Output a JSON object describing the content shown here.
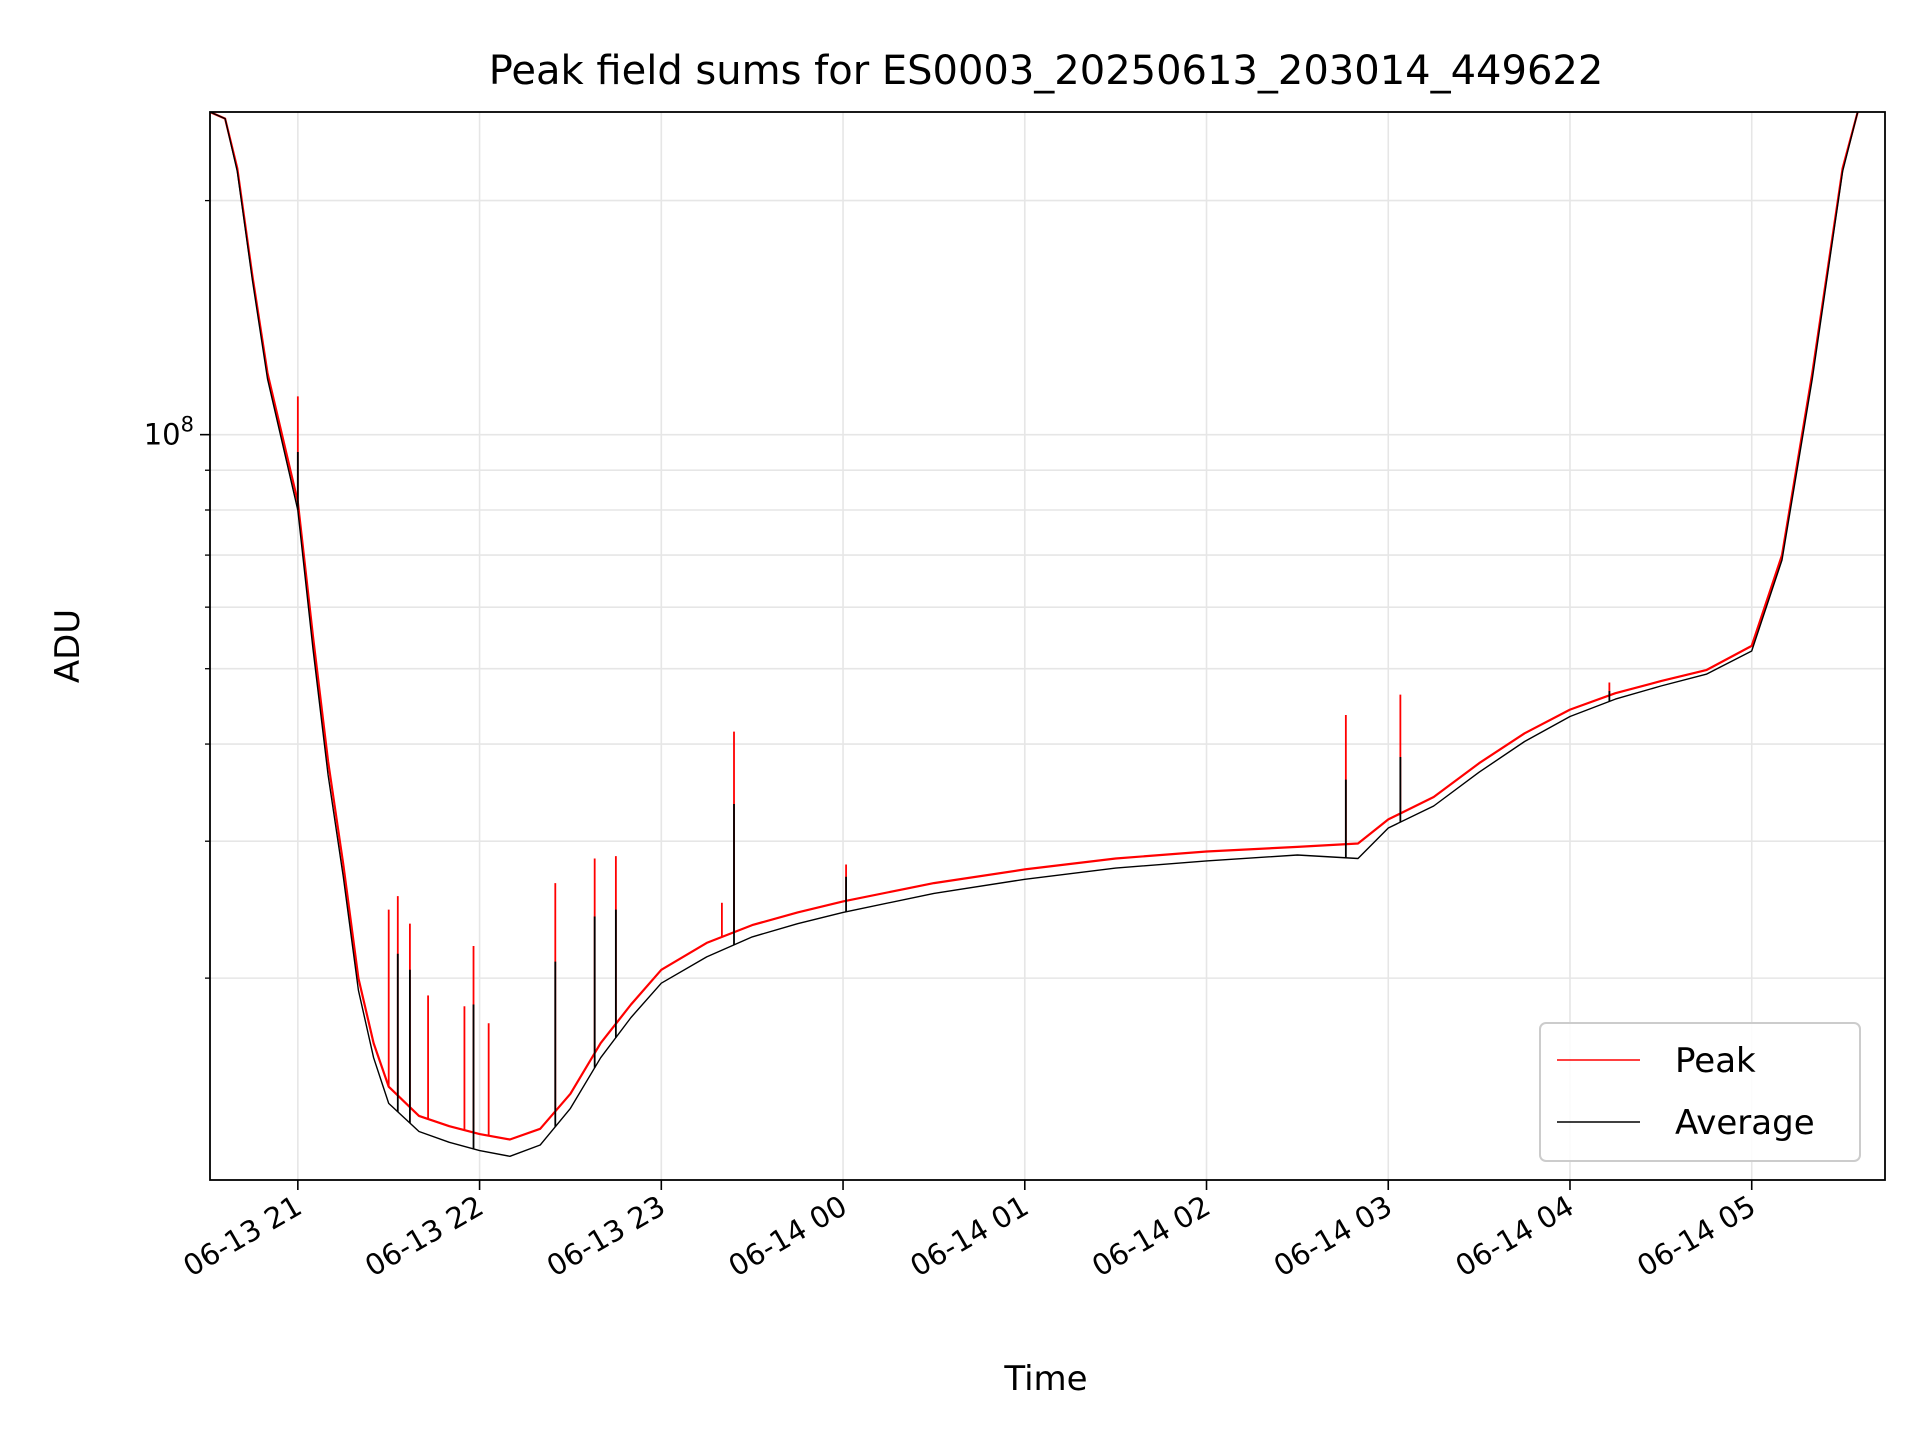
{
  "chart_data": {
    "type": "line",
    "title": "Peak field sums for ES0003_20250613_203014_449622",
    "xlabel": "Time",
    "ylabel": "ADU",
    "y_scale": "log",
    "ylim": [
      11000000,
      260000000
    ],
    "xlim": [
      "2025-06-13 20:31",
      "2025-06-14 05:44"
    ],
    "grid": true,
    "legend_position": "lower-right",
    "x_ticks": [
      {
        "t": "2025-06-13 21:00",
        "label": "06-13 21"
      },
      {
        "t": "2025-06-13 22:00",
        "label": "06-13 22"
      },
      {
        "t": "2025-06-13 23:00",
        "label": "06-13 23"
      },
      {
        "t": "2025-06-14 00:00",
        "label": "06-14 00"
      },
      {
        "t": "2025-06-14 01:00",
        "label": "06-14 01"
      },
      {
        "t": "2025-06-14 02:00",
        "label": "06-14 02"
      },
      {
        "t": "2025-06-14 03:00",
        "label": "06-14 03"
      },
      {
        "t": "2025-06-14 04:00",
        "label": "06-14 04"
      },
      {
        "t": "2025-06-14 05:00",
        "label": "06-14 05"
      }
    ],
    "y_major_ticks": [
      {
        "value": 100000000,
        "base": "10",
        "exp": "8"
      }
    ],
    "y_minor_ticks": [
      20000000,
      30000000,
      40000000,
      50000000,
      60000000,
      70000000,
      80000000,
      90000000,
      200000000
    ],
    "series": [
      {
        "name": "Peak",
        "color": "#ff0000",
        "points": [
          [
            "2025-06-13 20:31",
            260000000
          ],
          [
            "2025-06-13 20:36",
            255000000
          ],
          [
            "2025-06-13 20:40",
            220000000
          ],
          [
            "2025-06-13 20:45",
            160000000
          ],
          [
            "2025-06-13 20:50",
            120000000
          ],
          [
            "2025-06-13 21:00",
            82000000
          ],
          [
            "2025-06-13 21:05",
            55000000
          ],
          [
            "2025-06-13 21:10",
            38000000
          ],
          [
            "2025-06-13 21:15",
            28000000
          ],
          [
            "2025-06-13 21:20",
            20000000
          ],
          [
            "2025-06-13 21:25",
            16500000
          ],
          [
            "2025-06-13 21:30",
            14500000
          ],
          [
            "2025-06-13 21:40",
            13300000
          ],
          [
            "2025-06-13 21:50",
            12900000
          ],
          [
            "2025-06-13 22:00",
            12600000
          ],
          [
            "2025-06-13 22:10",
            12400000
          ],
          [
            "2025-06-13 22:20",
            12800000
          ],
          [
            "2025-06-13 22:30",
            14200000
          ],
          [
            "2025-06-13 22:40",
            16500000
          ],
          [
            "2025-06-13 22:50",
            18500000
          ],
          [
            "2025-06-13 23:00",
            20500000
          ],
          [
            "2025-06-13 23:15",
            22200000
          ],
          [
            "2025-06-13 23:30",
            23400000
          ],
          [
            "2025-06-13 23:45",
            24300000
          ],
          [
            "2025-06-14 00:00",
            25100000
          ],
          [
            "2025-06-14 00:30",
            26500000
          ],
          [
            "2025-06-14 01:00",
            27600000
          ],
          [
            "2025-06-14 01:30",
            28500000
          ],
          [
            "2025-06-14 02:00",
            29100000
          ],
          [
            "2025-06-14 02:30",
            29500000
          ],
          [
            "2025-06-14 02:50",
            29800000
          ],
          [
            "2025-06-14 03:00",
            32000000
          ],
          [
            "2025-06-14 03:15",
            34200000
          ],
          [
            "2025-06-14 03:30",
            37800000
          ],
          [
            "2025-06-14 03:45",
            41300000
          ],
          [
            "2025-06-14 04:00",
            44300000
          ],
          [
            "2025-06-14 04:15",
            46500000
          ],
          [
            "2025-06-14 04:30",
            48200000
          ],
          [
            "2025-06-14 04:45",
            49800000
          ],
          [
            "2025-06-14 05:00",
            53500000
          ],
          [
            "2025-06-14 05:10",
            70000000
          ],
          [
            "2025-06-14 05:20",
            120000000
          ],
          [
            "2025-06-14 05:30",
            220000000
          ],
          [
            "2025-06-14 05:35",
            260000000
          ]
        ],
        "spikes": [
          [
            "2025-06-13 21:00",
            112000000
          ],
          [
            "2025-06-13 21:30",
            24500000
          ],
          [
            "2025-06-13 21:33",
            25500000
          ],
          [
            "2025-06-13 21:37",
            23500000
          ],
          [
            "2025-06-13 21:43",
            19000000
          ],
          [
            "2025-06-13 21:55",
            18400000
          ],
          [
            "2025-06-13 21:58",
            22000000
          ],
          [
            "2025-06-13 22:03",
            17500000
          ],
          [
            "2025-06-13 22:25",
            26500000
          ],
          [
            "2025-06-13 22:38",
            28500000
          ],
          [
            "2025-06-13 22:45",
            28700000
          ],
          [
            "2025-06-13 23:20",
            25000000
          ],
          [
            "2025-06-13 23:24",
            41500000
          ],
          [
            "2025-06-14 00:01",
            28000000
          ],
          [
            "2025-06-14 02:46",
            43600000
          ],
          [
            "2025-06-14 03:04",
            46300000
          ],
          [
            "2025-06-14 04:13",
            48000000
          ]
        ]
      },
      {
        "name": "Average",
        "color": "#000000",
        "points": [
          [
            "2025-06-13 20:31",
            260000000
          ],
          [
            "2025-06-13 20:36",
            255000000
          ],
          [
            "2025-06-13 20:40",
            218000000
          ],
          [
            "2025-06-13 20:45",
            158000000
          ],
          [
            "2025-06-13 20:50",
            118000000
          ],
          [
            "2025-06-13 21:00",
            80000000
          ],
          [
            "2025-06-13 21:05",
            53000000
          ],
          [
            "2025-06-13 21:10",
            36500000
          ],
          [
            "2025-06-13 21:15",
            27000000
          ],
          [
            "2025-06-13 21:20",
            19300000
          ],
          [
            "2025-06-13 21:25",
            15800000
          ],
          [
            "2025-06-13 21:30",
            13800000
          ],
          [
            "2025-06-13 21:40",
            12700000
          ],
          [
            "2025-06-13 21:50",
            12300000
          ],
          [
            "2025-06-13 22:00",
            12000000
          ],
          [
            "2025-06-13 22:10",
            11800000
          ],
          [
            "2025-06-13 22:20",
            12200000
          ],
          [
            "2025-06-13 22:30",
            13600000
          ],
          [
            "2025-06-13 22:40",
            15800000
          ],
          [
            "2025-06-13 22:50",
            17800000
          ],
          [
            "2025-06-13 23:00",
            19700000
          ],
          [
            "2025-06-13 23:15",
            21300000
          ],
          [
            "2025-06-13 23:30",
            22600000
          ],
          [
            "2025-06-13 23:45",
            23500000
          ],
          [
            "2025-06-14 00:00",
            24300000
          ],
          [
            "2025-06-14 00:30",
            25700000
          ],
          [
            "2025-06-14 01:00",
            26800000
          ],
          [
            "2025-06-14 01:30",
            27700000
          ],
          [
            "2025-06-14 02:00",
            28300000
          ],
          [
            "2025-06-14 02:30",
            28800000
          ],
          [
            "2025-06-14 02:50",
            28500000
          ],
          [
            "2025-06-14 03:00",
            31200000
          ],
          [
            "2025-06-14 03:15",
            33300000
          ],
          [
            "2025-06-14 03:30",
            36800000
          ],
          [
            "2025-06-14 03:45",
            40300000
          ],
          [
            "2025-06-14 04:00",
            43400000
          ],
          [
            "2025-06-14 04:15",
            45700000
          ],
          [
            "2025-06-14 04:30",
            47500000
          ],
          [
            "2025-06-14 04:45",
            49200000
          ],
          [
            "2025-06-14 05:00",
            52700000
          ],
          [
            "2025-06-14 05:10",
            69000000
          ],
          [
            "2025-06-14 05:20",
            118000000
          ],
          [
            "2025-06-14 05:30",
            218000000
          ],
          [
            "2025-06-14 05:35",
            260000000
          ]
        ],
        "spikes": [
          [
            "2025-06-13 21:00",
            95000000
          ],
          [
            "2025-06-13 21:33",
            21500000
          ],
          [
            "2025-06-13 21:37",
            20500000
          ],
          [
            "2025-06-13 21:58",
            18500000
          ],
          [
            "2025-06-13 22:25",
            21000000
          ],
          [
            "2025-06-13 22:38",
            24000000
          ],
          [
            "2025-06-13 22:45",
            24500000
          ],
          [
            "2025-06-13 23:24",
            33500000
          ],
          [
            "2025-06-14 00:01",
            27000000
          ],
          [
            "2025-06-14 02:46",
            36000000
          ],
          [
            "2025-06-14 03:04",
            38500000
          ],
          [
            "2025-06-14 04:13",
            46800000
          ]
        ]
      }
    ]
  }
}
